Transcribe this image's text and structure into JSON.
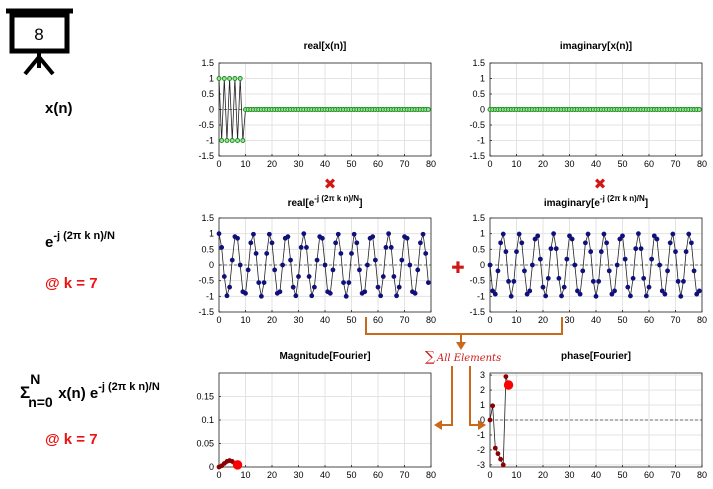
{
  "slide_number": "8",
  "left_labels": {
    "xn": "x(n)",
    "exp_base": "e",
    "exp_sup": "-j (2π k n)/N",
    "at_k": "@ k = 7",
    "sum_sigma": "Σ",
    "sum_upper": "N",
    "sum_lower": "n=0",
    "sum_body": "x(n) e",
    "sum_sup": "-j (2π k n)/N",
    "at_k2": "@ k = 7"
  },
  "annotations": {
    "multiply_symbol": "✖",
    "plus_symbol": "✚",
    "sum_symbol": "∑",
    "sum_text": "All Elements"
  },
  "colors": {
    "green_markers": "#1a8a1a",
    "navy_markers": "#10107a",
    "red_markers": "#8b0000",
    "red_highlight": "#ff0000",
    "orange_arrows": "#c8691c",
    "annotation_red": "#d01818"
  },
  "chart_data": [
    {
      "id": "real_xn",
      "type": "line",
      "title_text": "real[x(n)]",
      "xlim": [
        0,
        80
      ],
      "ylim": [
        -1.5,
        1.5
      ],
      "xticks": [
        0,
        10,
        20,
        30,
        40,
        50,
        60,
        70,
        80
      ],
      "yticks": [
        -1.5,
        -1,
        -0.5,
        0,
        0.5,
        1,
        1.5
      ],
      "x": [
        0,
        1,
        2,
        3,
        4,
        5,
        6,
        7,
        8,
        9,
        10,
        11,
        12,
        13,
        14,
        15,
        16,
        17,
        18,
        19,
        20,
        21,
        22,
        23,
        24,
        25,
        26,
        27,
        28,
        29,
        30,
        31,
        32,
        33,
        34,
        35,
        36,
        37,
        38,
        39,
        40,
        41,
        42,
        43,
        44,
        45,
        46,
        47,
        48,
        49,
        50,
        51,
        52,
        53,
        54,
        55,
        56,
        57,
        58,
        59,
        60,
        61,
        62,
        63,
        64,
        65,
        66,
        67,
        68,
        69,
        70,
        71,
        72,
        73,
        74,
        75,
        76,
        77,
        78,
        79
      ],
      "y": [
        1,
        -1,
        1,
        -1,
        1,
        -1,
        1,
        -1,
        1,
        -1,
        0,
        0,
        0,
        0,
        0,
        0,
        0,
        0,
        0,
        0,
        0,
        0,
        0,
        0,
        0,
        0,
        0,
        0,
        0,
        0,
        0,
        0,
        0,
        0,
        0,
        0,
        0,
        0,
        0,
        0,
        0,
        0,
        0,
        0,
        0,
        0,
        0,
        0,
        0,
        0,
        0,
        0,
        0,
        0,
        0,
        0,
        0,
        0,
        0,
        0,
        0,
        0,
        0,
        0,
        0,
        0,
        0,
        0,
        0,
        0,
        0,
        0,
        0,
        0,
        0,
        0,
        0,
        0,
        0,
        0
      ],
      "marker_color": "green"
    },
    {
      "id": "imag_xn",
      "type": "line",
      "title_text": "imaginary[x(n)]",
      "xlim": [
        0,
        80
      ],
      "ylim": [
        -1.5,
        1.5
      ],
      "xticks": [
        0,
        10,
        20,
        30,
        40,
        50,
        60,
        70,
        80
      ],
      "yticks": [
        -1.5,
        -1,
        -0.5,
        0,
        0.5,
        1,
        1.5
      ],
      "x": [
        0,
        1,
        2,
        3,
        4,
        5,
        6,
        7,
        8,
        9,
        10,
        11,
        12,
        13,
        14,
        15,
        16,
        17,
        18,
        19,
        20,
        21,
        22,
        23,
        24,
        25,
        26,
        27,
        28,
        29,
        30,
        31,
        32,
        33,
        34,
        35,
        36,
        37,
        38,
        39,
        40,
        41,
        42,
        43,
        44,
        45,
        46,
        47,
        48,
        49,
        50,
        51,
        52,
        53,
        54,
        55,
        56,
        57,
        58,
        59,
        60,
        61,
        62,
        63,
        64,
        65,
        66,
        67,
        68,
        69,
        70,
        71,
        72,
        73,
        74,
        75,
        76,
        77,
        78,
        79
      ],
      "y": [
        0,
        0,
        0,
        0,
        0,
        0,
        0,
        0,
        0,
        0,
        0,
        0,
        0,
        0,
        0,
        0,
        0,
        0,
        0,
        0,
        0,
        0,
        0,
        0,
        0,
        0,
        0,
        0,
        0,
        0,
        0,
        0,
        0,
        0,
        0,
        0,
        0,
        0,
        0,
        0,
        0,
        0,
        0,
        0,
        0,
        0,
        0,
        0,
        0,
        0,
        0,
        0,
        0,
        0,
        0,
        0,
        0,
        0,
        0,
        0,
        0,
        0,
        0,
        0,
        0,
        0,
        0,
        0,
        0,
        0,
        0,
        0,
        0,
        0,
        0,
        0,
        0,
        0,
        0,
        0
      ],
      "marker_color": "green"
    },
    {
      "id": "real_exp",
      "type": "line",
      "title_text": "real[e",
      "title_sup": "-j (2π k n)/N",
      "title_end": "]",
      "xlim": [
        0,
        80
      ],
      "ylim": [
        -1.5,
        1.5
      ],
      "xticks": [
        0,
        10,
        20,
        30,
        40,
        50,
        60,
        70,
        80
      ],
      "yticks": [
        -1.5,
        -1,
        -0.5,
        0,
        0.5,
        1,
        1.5
      ],
      "x": [
        0,
        1,
        2,
        3,
        4,
        5,
        6,
        7,
        8,
        9,
        10,
        11,
        12,
        13,
        14,
        15,
        16,
        17,
        18,
        19,
        20,
        21,
        22,
        23,
        24,
        25,
        26,
        27,
        28,
        29,
        30,
        31,
        32,
        33,
        34,
        35,
        36,
        37,
        38,
        39,
        40,
        41,
        42,
        43,
        44,
        45,
        46,
        47,
        48,
        49,
        50,
        51,
        52,
        53,
        54,
        55,
        56,
        57,
        58,
        59,
        60,
        61,
        62,
        63,
        64,
        65,
        66,
        67,
        68,
        69,
        70,
        71,
        72,
        73,
        74,
        75,
        76,
        77,
        78,
        79
      ],
      "y": [
        1.0,
        0.5621,
        -0.368,
        -0.9823,
        -0.7071,
        0.1564,
        0.9048,
        0.8526,
        0.0,
        -0.8526,
        -0.9048,
        -0.1564,
        0.7071,
        0.9823,
        0.368,
        -0.5621,
        -1.0,
        -0.5621,
        0.368,
        0.9823,
        0.7071,
        -0.1564,
        -0.9048,
        -0.8526,
        0.0,
        0.8526,
        0.9048,
        0.1564,
        -0.7071,
        -0.9823,
        -0.368,
        0.5621,
        1.0,
        0.5621,
        -0.368,
        -0.9823,
        -0.7071,
        0.1564,
        0.9048,
        0.8526,
        0.0,
        -0.8526,
        -0.9048,
        -0.1564,
        0.7071,
        0.9823,
        0.368,
        -0.5621,
        -1.0,
        -0.5621,
        0.368,
        0.9823,
        0.7071,
        -0.1564,
        -0.9048,
        -0.8526,
        0.0,
        0.8526,
        0.9048,
        0.1564,
        -0.7071,
        -0.9823,
        -0.368,
        0.5621,
        1.0,
        0.5621,
        -0.368,
        -0.9823,
        -0.7071,
        0.1564,
        0.9048,
        0.8526,
        0.0,
        -0.8526,
        -0.9048,
        -0.1564,
        0.7071,
        0.9823,
        0.368,
        -0.5621
      ],
      "marker_color": "navy"
    },
    {
      "id": "imag_exp",
      "type": "line",
      "title_text": "imaginary[e",
      "title_sup": "-j (2π k n)/N",
      "title_end": "]",
      "xlim": [
        0,
        80
      ],
      "ylim": [
        -1.5,
        1.5
      ],
      "xticks": [
        0,
        10,
        20,
        30,
        40,
        50,
        60,
        70,
        80
      ],
      "yticks": [
        -1.5,
        -1,
        -0.5,
        0,
        0.5,
        1,
        1.5
      ],
      "x": [
        0,
        1,
        2,
        3,
        4,
        5,
        6,
        7,
        8,
        9,
        10,
        11,
        12,
        13,
        14,
        15,
        16,
        17,
        18,
        19,
        20,
        21,
        22,
        23,
        24,
        25,
        26,
        27,
        28,
        29,
        30,
        31,
        32,
        33,
        34,
        35,
        36,
        37,
        38,
        39,
        40,
        41,
        42,
        43,
        44,
        45,
        46,
        47,
        48,
        49,
        50,
        51,
        52,
        53,
        54,
        55,
        56,
        57,
        58,
        59,
        60,
        61,
        62,
        63,
        64,
        65,
        66,
        67,
        68,
        69,
        70,
        71,
        72,
        73,
        74,
        75,
        76,
        77,
        78,
        79
      ],
      "y": [
        0.0,
        -0.8271,
        -0.9298,
        -0.1874,
        0.7071,
        0.9877,
        0.4258,
        -0.5225,
        -1.0,
        -0.5225,
        0.4258,
        0.9877,
        0.7071,
        -0.1874,
        -0.9298,
        -0.8271,
        0.0,
        0.8271,
        0.9298,
        0.1874,
        -0.7071,
        -0.9877,
        -0.4258,
        0.5225,
        1.0,
        0.5225,
        -0.4258,
        -0.9877,
        -0.7071,
        0.1874,
        0.9298,
        0.8271,
        0.0,
        -0.8271,
        -0.9298,
        -0.1874,
        0.7071,
        0.9877,
        0.4258,
        -0.5225,
        -1.0,
        -0.5225,
        0.4258,
        0.9877,
        0.7071,
        -0.1874,
        -0.9298,
        -0.8271,
        0.0,
        0.8271,
        0.9298,
        0.1874,
        -0.7071,
        -0.9877,
        -0.4258,
        0.5225,
        1.0,
        0.5225,
        -0.4258,
        -0.9877,
        -0.7071,
        0.1874,
        0.9298,
        0.8271,
        0.0,
        -0.8271,
        -0.9298,
        -0.1874,
        0.7071,
        0.9877,
        0.4258,
        -0.5225,
        -1.0,
        -0.5225,
        0.4258,
        0.9877,
        0.7071,
        -0.1874,
        -0.9298,
        -0.8271
      ],
      "marker_color": "navy"
    },
    {
      "id": "magnitude",
      "type": "line",
      "title_text": "Magnitude[Fourier]",
      "xlim": [
        0,
        80
      ],
      "ylim": [
        0,
        0.2
      ],
      "xticks": [
        0,
        10,
        20,
        30,
        40,
        50,
        60,
        70,
        80
      ],
      "yticks": [
        0,
        0.05,
        0.1,
        0.15
      ],
      "x": [
        0,
        1,
        2,
        3,
        4,
        5,
        6,
        7
      ],
      "y": [
        0,
        0.0025,
        0.0075,
        0.0118,
        0.0137,
        0.0118,
        0.0075,
        0.0045
      ],
      "marker_color": "darkred",
      "highlight": {
        "x": 7,
        "y": 0.0045
      }
    },
    {
      "id": "phase",
      "type": "line",
      "title_text": "phase[Fourier]",
      "xlim": [
        0,
        80
      ],
      "ylim": [
        -3.14159,
        3.14159
      ],
      "xticks": [
        0,
        10,
        20,
        30,
        40,
        50,
        60,
        70,
        80
      ],
      "yticks": [
        -3,
        -2,
        -1,
        0,
        1,
        2,
        3
      ],
      "x": [
        0,
        1,
        2,
        3,
        4,
        5,
        6,
        7
      ],
      "y": [
        0,
        0.95,
        -1.88,
        -2.25,
        -2.62,
        -3.0,
        2.9,
        2.34
      ],
      "marker_color": "darkred",
      "highlight": {
        "x": 7,
        "y": 2.34
      }
    }
  ]
}
